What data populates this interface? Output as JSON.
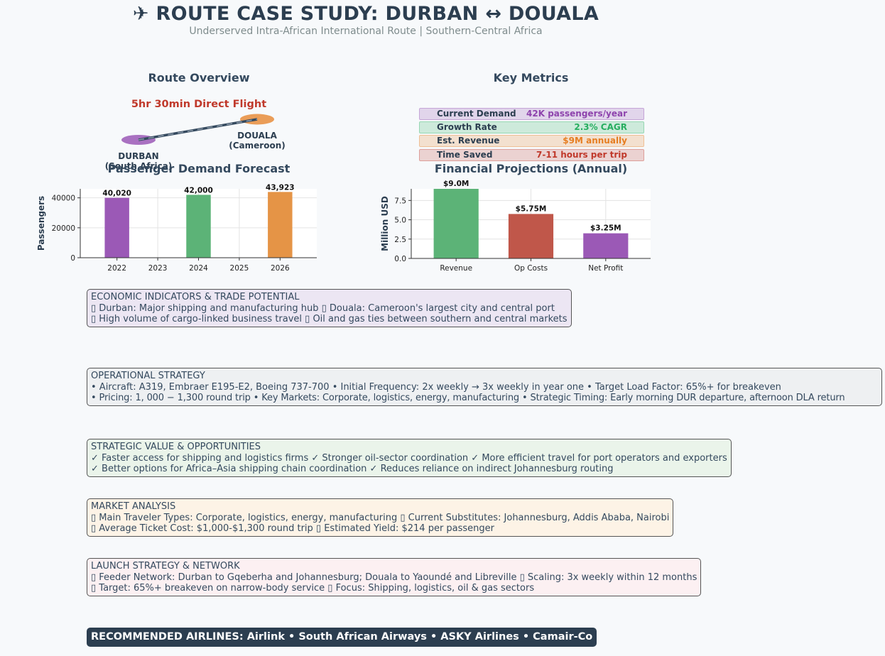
{
  "header": {
    "title": "✈ ROUTE CASE STUDY: DURBAN ↔ DOUALA",
    "subtitle": "Underserved Intra-African International Route | Southern-Central Africa"
  },
  "route_overview": {
    "title": "Route Overview",
    "flight_time": "5hr 30min Direct Flight",
    "origin_city": "DURBAN",
    "origin_country": "(South Africa)",
    "destination_city": "DOUALA",
    "destination_country": "(Cameroon)",
    "origin_color": "#9b59b6",
    "destination_color": "#e67e22"
  },
  "key_metrics": {
    "title": "Key Metrics",
    "rows": [
      {
        "label": "Current Demand",
        "value": "42K passengers/year",
        "color": "#8e44ad"
      },
      {
        "label": "Growth Rate",
        "value": "2.3% CAGR",
        "color": "#27ae60"
      },
      {
        "label": "Est. Revenue",
        "value": "$9M annually",
        "color": "#e67e22"
      },
      {
        "label": "Time Saved",
        "value": "7-11 hours per trip",
        "color": "#c0392b"
      }
    ]
  },
  "chart_data": [
    {
      "type": "bar",
      "title": "Passenger Demand Forecast",
      "ylabel": "Passengers",
      "x": [
        2022,
        2024,
        2026
      ],
      "x_ticks": [
        "2022",
        "2023",
        "2024",
        "2025",
        "2026"
      ],
      "values": [
        40020,
        42000,
        43923
      ],
      "value_labels": [
        "40,020",
        "42,000",
        "43,923"
      ],
      "colors": [
        "#9b59b6",
        "#5cb377",
        "#e59446"
      ],
      "ylim": [
        0,
        46000
      ],
      "y_ticks": [
        0,
        20000,
        40000
      ],
      "grid": true
    },
    {
      "type": "bar",
      "title": "Financial Projections (Annual)",
      "ylabel": "Million USD",
      "categories": [
        "Revenue",
        "Op Costs",
        "Net Profit"
      ],
      "values": [
        9.0,
        5.75,
        3.25
      ],
      "value_labels": [
        "$9.0M",
        "$5.75M",
        "$3.25M"
      ],
      "colors": [
        "#5cb377",
        "#c0574a",
        "#9b59b6"
      ],
      "ylim": [
        0,
        9.0
      ],
      "y_ticks": [
        0.0,
        2.5,
        5.0,
        7.5
      ],
      "grid": true
    }
  ],
  "boxes": {
    "economic": {
      "title": "ECONOMIC INDICATORS & TRADE POTENTIAL",
      "line1": "▯ Durban: Major shipping and manufacturing hub  ▯ Douala: Cameroon's largest city and central port",
      "line2": "▯ High volume of cargo-linked business travel  ▯ Oil and gas ties between southern and central markets",
      "bg": "#ece6f3"
    },
    "operational": {
      "title": "OPERATIONAL STRATEGY",
      "line1": "• Aircraft: A319, Embraer E195-E2, Boeing 737-700  • Initial Frequency: 2x weekly → 3x weekly in year one  • Target Load Factor: 65%+ for breakeven",
      "line2": "• Pricing: 1, 000 − 1,300 round trip  • Key Markets: Corporate, logistics, energy, manufacturing  • Strategic Timing: Early morning DUR departure, afternoon DLA return",
      "bg": "#eef0f2"
    },
    "strategic": {
      "title": "STRATEGIC VALUE & OPPORTUNITIES",
      "line1": "✓ Faster access for shipping and logistics firms  ✓ Stronger oil-sector coordination  ✓ More efficient travel for port operators and exporters",
      "line2": "✓ Better options for Africa–Asia shipping chain coordination  ✓ Reduces reliance on indirect Johannesburg routing",
      "bg": "#eaf4ea"
    },
    "market": {
      "title": "MARKET ANALYSIS",
      "line1": "▯ Main Traveler Types: Corporate, logistics, energy, manufacturing  ▯ Current Substitutes: Johannesburg, Addis Ababa, Nairobi",
      "line2": "▯ Average Ticket Cost: $1,000-$1,300 round trip  ▯ Estimated Yield: $214 per passenger",
      "bg": "#fdf3e6"
    },
    "launch": {
      "title": "LAUNCH STRATEGY & NETWORK",
      "line1": "▯ Feeder Network: Durban to Gqeberha and Johannesburg; Douala to Yaoundé and Libreville  ▯ Scaling: 3x weekly within 12 months",
      "line2": "▯ Target: 65%+ breakeven on narrow-body service  ▯ Focus: Shipping, logistics, oil & gas sectors",
      "bg": "#fcf0f2"
    }
  },
  "footer": {
    "text": "RECOMMENDED AIRLINES: Airlink • South African Airways • ASKY Airlines • Camair-Co"
  }
}
